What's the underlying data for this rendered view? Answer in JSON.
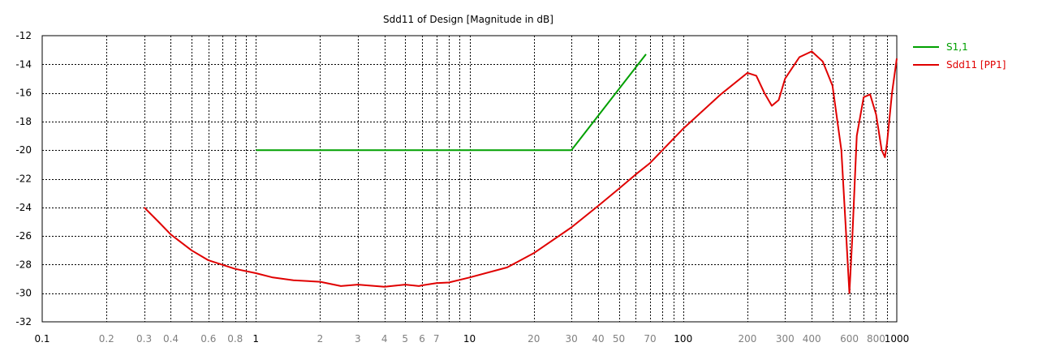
{
  "chart_data": {
    "type": "line",
    "title": "Sdd11 of Design [Magnitude in dB]",
    "x_scale": "log",
    "xlim": [
      0.1,
      1000
    ],
    "ylim": [
      -32,
      -12
    ],
    "grid": true,
    "legend_position": "right",
    "y_ticks": [
      -12,
      -14,
      -16,
      -18,
      -20,
      -22,
      -24,
      -26,
      -28,
      -30,
      -32
    ],
    "x_ticks": [
      {
        "value": 0.1,
        "label": "0.1",
        "major": true
      },
      {
        "value": 0.2,
        "label": "0.2",
        "major": false
      },
      {
        "value": 0.3,
        "label": "0.3",
        "major": false
      },
      {
        "value": 0.4,
        "label": "0.4",
        "major": false
      },
      {
        "value": 0.5,
        "label": "",
        "major": false
      },
      {
        "value": 0.6,
        "label": "0.6",
        "major": false
      },
      {
        "value": 0.7,
        "label": "",
        "major": false
      },
      {
        "value": 0.8,
        "label": "0.8",
        "major": false
      },
      {
        "value": 0.9,
        "label": "",
        "major": false
      },
      {
        "value": 1,
        "label": "1",
        "major": true
      },
      {
        "value": 2,
        "label": "2",
        "major": false
      },
      {
        "value": 3,
        "label": "3",
        "major": false
      },
      {
        "value": 4,
        "label": "4",
        "major": false
      },
      {
        "value": 5,
        "label": "5",
        "major": false
      },
      {
        "value": 6,
        "label": "6",
        "major": false
      },
      {
        "value": 7,
        "label": "7",
        "major": false
      },
      {
        "value": 8,
        "label": "",
        "major": false
      },
      {
        "value": 9,
        "label": "",
        "major": false
      },
      {
        "value": 10,
        "label": "10",
        "major": true
      },
      {
        "value": 20,
        "label": "20",
        "major": false
      },
      {
        "value": 30,
        "label": "30",
        "major": false
      },
      {
        "value": 40,
        "label": "40",
        "major": false
      },
      {
        "value": 50,
        "label": "50",
        "major": false
      },
      {
        "value": 60,
        "label": "",
        "major": false
      },
      {
        "value": 70,
        "label": "70",
        "major": false
      },
      {
        "value": 80,
        "label": "",
        "major": false
      },
      {
        "value": 90,
        "label": "",
        "major": false
      },
      {
        "value": 100,
        "label": "100",
        "major": true
      },
      {
        "value": 200,
        "label": "200",
        "major": false
      },
      {
        "value": 300,
        "label": "300",
        "major": false
      },
      {
        "value": 400,
        "label": "400",
        "major": false
      },
      {
        "value": 500,
        "label": "",
        "major": false
      },
      {
        "value": 600,
        "label": "600",
        "major": false
      },
      {
        "value": 700,
        "label": "",
        "major": false
      },
      {
        "value": 800,
        "label": "800",
        "major": false
      },
      {
        "value": 900,
        "label": "",
        "major": false
      },
      {
        "value": 1000,
        "label": "1000",
        "major": true
      }
    ],
    "series": [
      {
        "name": "S1,1",
        "color": "#00a000",
        "x": [
          1,
          30,
          67
        ],
        "y": [
          -20,
          -20,
          -13.3
        ]
      },
      {
        "name": "Sdd11 [PP1]",
        "color": "#e00000",
        "x": [
          0.3,
          0.35,
          0.4,
          0.5,
          0.6,
          0.8,
          1,
          1.2,
          1.5,
          2,
          2.5,
          3,
          4,
          5,
          5.8,
          6,
          7,
          8,
          10,
          15,
          20,
          30,
          40,
          50,
          60,
          70,
          100,
          150,
          200,
          220,
          240,
          260,
          280,
          300,
          350,
          400,
          450,
          500,
          550,
          580,
          600,
          620,
          650,
          700,
          750,
          800,
          850,
          880,
          900,
          950,
          1000
        ],
        "y": [
          -24.0,
          -25.0,
          -25.9,
          -27.0,
          -27.7,
          -28.3,
          -28.6,
          -28.9,
          -29.1,
          -29.2,
          -29.5,
          -29.4,
          -29.55,
          -29.4,
          -29.5,
          -29.45,
          -29.3,
          -29.25,
          -28.9,
          -28.2,
          -27.2,
          -25.4,
          -23.9,
          -22.7,
          -21.7,
          -20.9,
          -18.5,
          -16.1,
          -14.6,
          -14.8,
          -16.0,
          -16.9,
          -16.5,
          -15.0,
          -13.5,
          -13.1,
          -13.8,
          -15.5,
          -20.0,
          -26.0,
          -30.0,
          -26.0,
          -19.0,
          -16.3,
          -16.1,
          -17.5,
          -20.0,
          -20.5,
          -19.5,
          -16.0,
          -13.6
        ]
      }
    ]
  }
}
